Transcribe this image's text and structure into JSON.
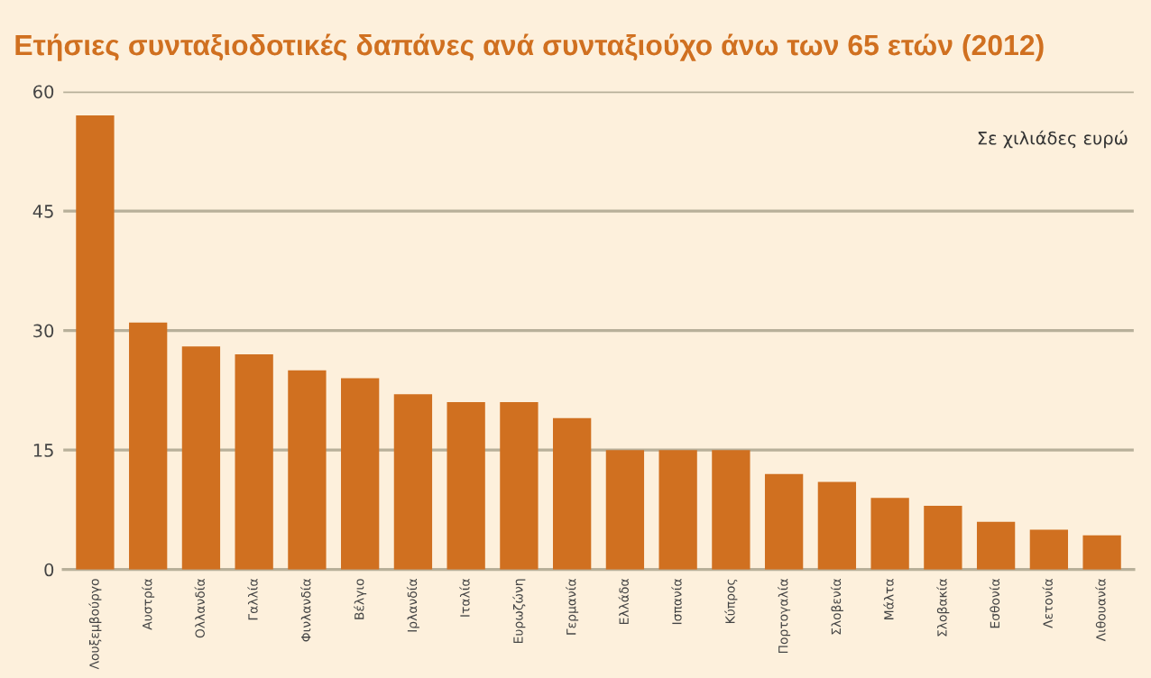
{
  "chart_data": {
    "type": "bar",
    "title": "Ετήσιες συνταξιοδοτικές δαπάνες ανά συνταξιούχο άνω των 65 ετών (2012)",
    "annotations": [
      "Σε χιλιάδες ευρώ"
    ],
    "categories": [
      "Λουξεμβούργο",
      "Αυστρία",
      "Ολλανδία",
      "Γαλλία",
      "Φινλανδία",
      "Βέλγιο",
      "Ιρλανδία",
      "Ιταλία",
      "Ευρωζώνη",
      "Γερμανία",
      "Ελλάδα",
      "Ισπανία",
      "Κύπρος",
      "Πορτογαλία",
      "Σλοβενία",
      "Μάλτα",
      "Σλοβακία",
      "Εσθονία",
      "Λετονία",
      "Λιθουανία"
    ],
    "values": [
      57,
      31,
      28,
      27,
      25,
      24,
      22,
      21,
      21,
      19,
      15,
      15,
      15,
      12,
      11,
      9,
      8,
      6,
      5,
      4.3
    ],
    "color": "#d07020",
    "ylim": [
      0,
      60
    ],
    "yticks": [
      0,
      15,
      30,
      45,
      60
    ],
    "grid": "y"
  }
}
